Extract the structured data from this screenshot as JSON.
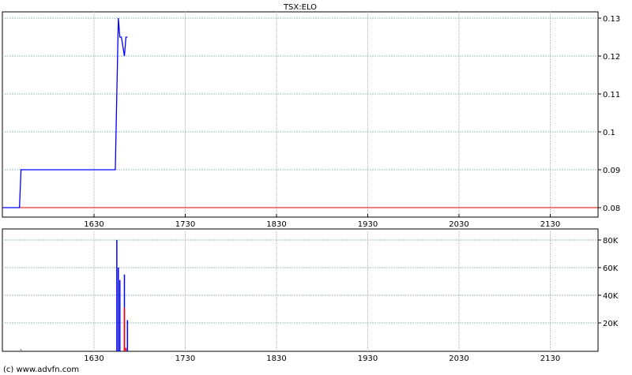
{
  "chart_data": [
    {
      "type": "line",
      "title": "TSX:ELO",
      "x_tick_labels": [
        "1630",
        "1730",
        "1830",
        "1930",
        "2030",
        "2130"
      ],
      "y_tick_labels": [
        "0.08",
        "0.09",
        "0.1",
        "0.11",
        "0.12",
        "0.13"
      ],
      "ylim": [
        0.075,
        0.132
      ],
      "grid": true,
      "reference_line": {
        "value": 0.08,
        "color": "#e00000"
      },
      "series": [
        {
          "color": "#0000ff",
          "points": [
            {
              "t": "1530",
              "y": 0.08
            },
            {
              "t": "1541",
              "y": 0.08
            },
            {
              "t": "1542",
              "y": 0.09
            },
            {
              "t": "1644",
              "y": 0.09
            },
            {
              "t": "1646",
              "y": 0.13
            },
            {
              "t": "1647",
              "y": 0.125
            },
            {
              "t": "1648",
              "y": 0.125
            },
            {
              "t": "1650",
              "y": 0.12
            },
            {
              "t": "1651",
              "y": 0.125
            },
            {
              "t": "1652",
              "y": 0.125
            }
          ]
        }
      ]
    },
    {
      "type": "bar",
      "x_tick_labels": [
        "1630",
        "1730",
        "1830",
        "1930",
        "2030",
        "2130"
      ],
      "y_tick_labels": [
        "20K",
        "40K",
        "60K",
        "80K"
      ],
      "ylim": [
        0,
        88000
      ],
      "grid": true,
      "bars": [
        {
          "t": "1542",
          "value": 1000,
          "color": "#808080"
        },
        {
          "t": "1645",
          "value": 80000,
          "color": "#0000ff"
        },
        {
          "t": "1646",
          "value": 60000,
          "color": "#0000ff"
        },
        {
          "t": "1647",
          "value": 51000,
          "color": "#0000ff"
        },
        {
          "t": "1650",
          "value": 55000,
          "color": "#0000ff"
        },
        {
          "t": "1650",
          "value": 31000,
          "color": "#ff0000"
        },
        {
          "t": "1651",
          "value": 2000,
          "color": "#ff0000"
        },
        {
          "t": "1652",
          "value": 22000,
          "color": "#0000ff"
        }
      ]
    }
  ],
  "footer": "(c) www.advfn.com"
}
